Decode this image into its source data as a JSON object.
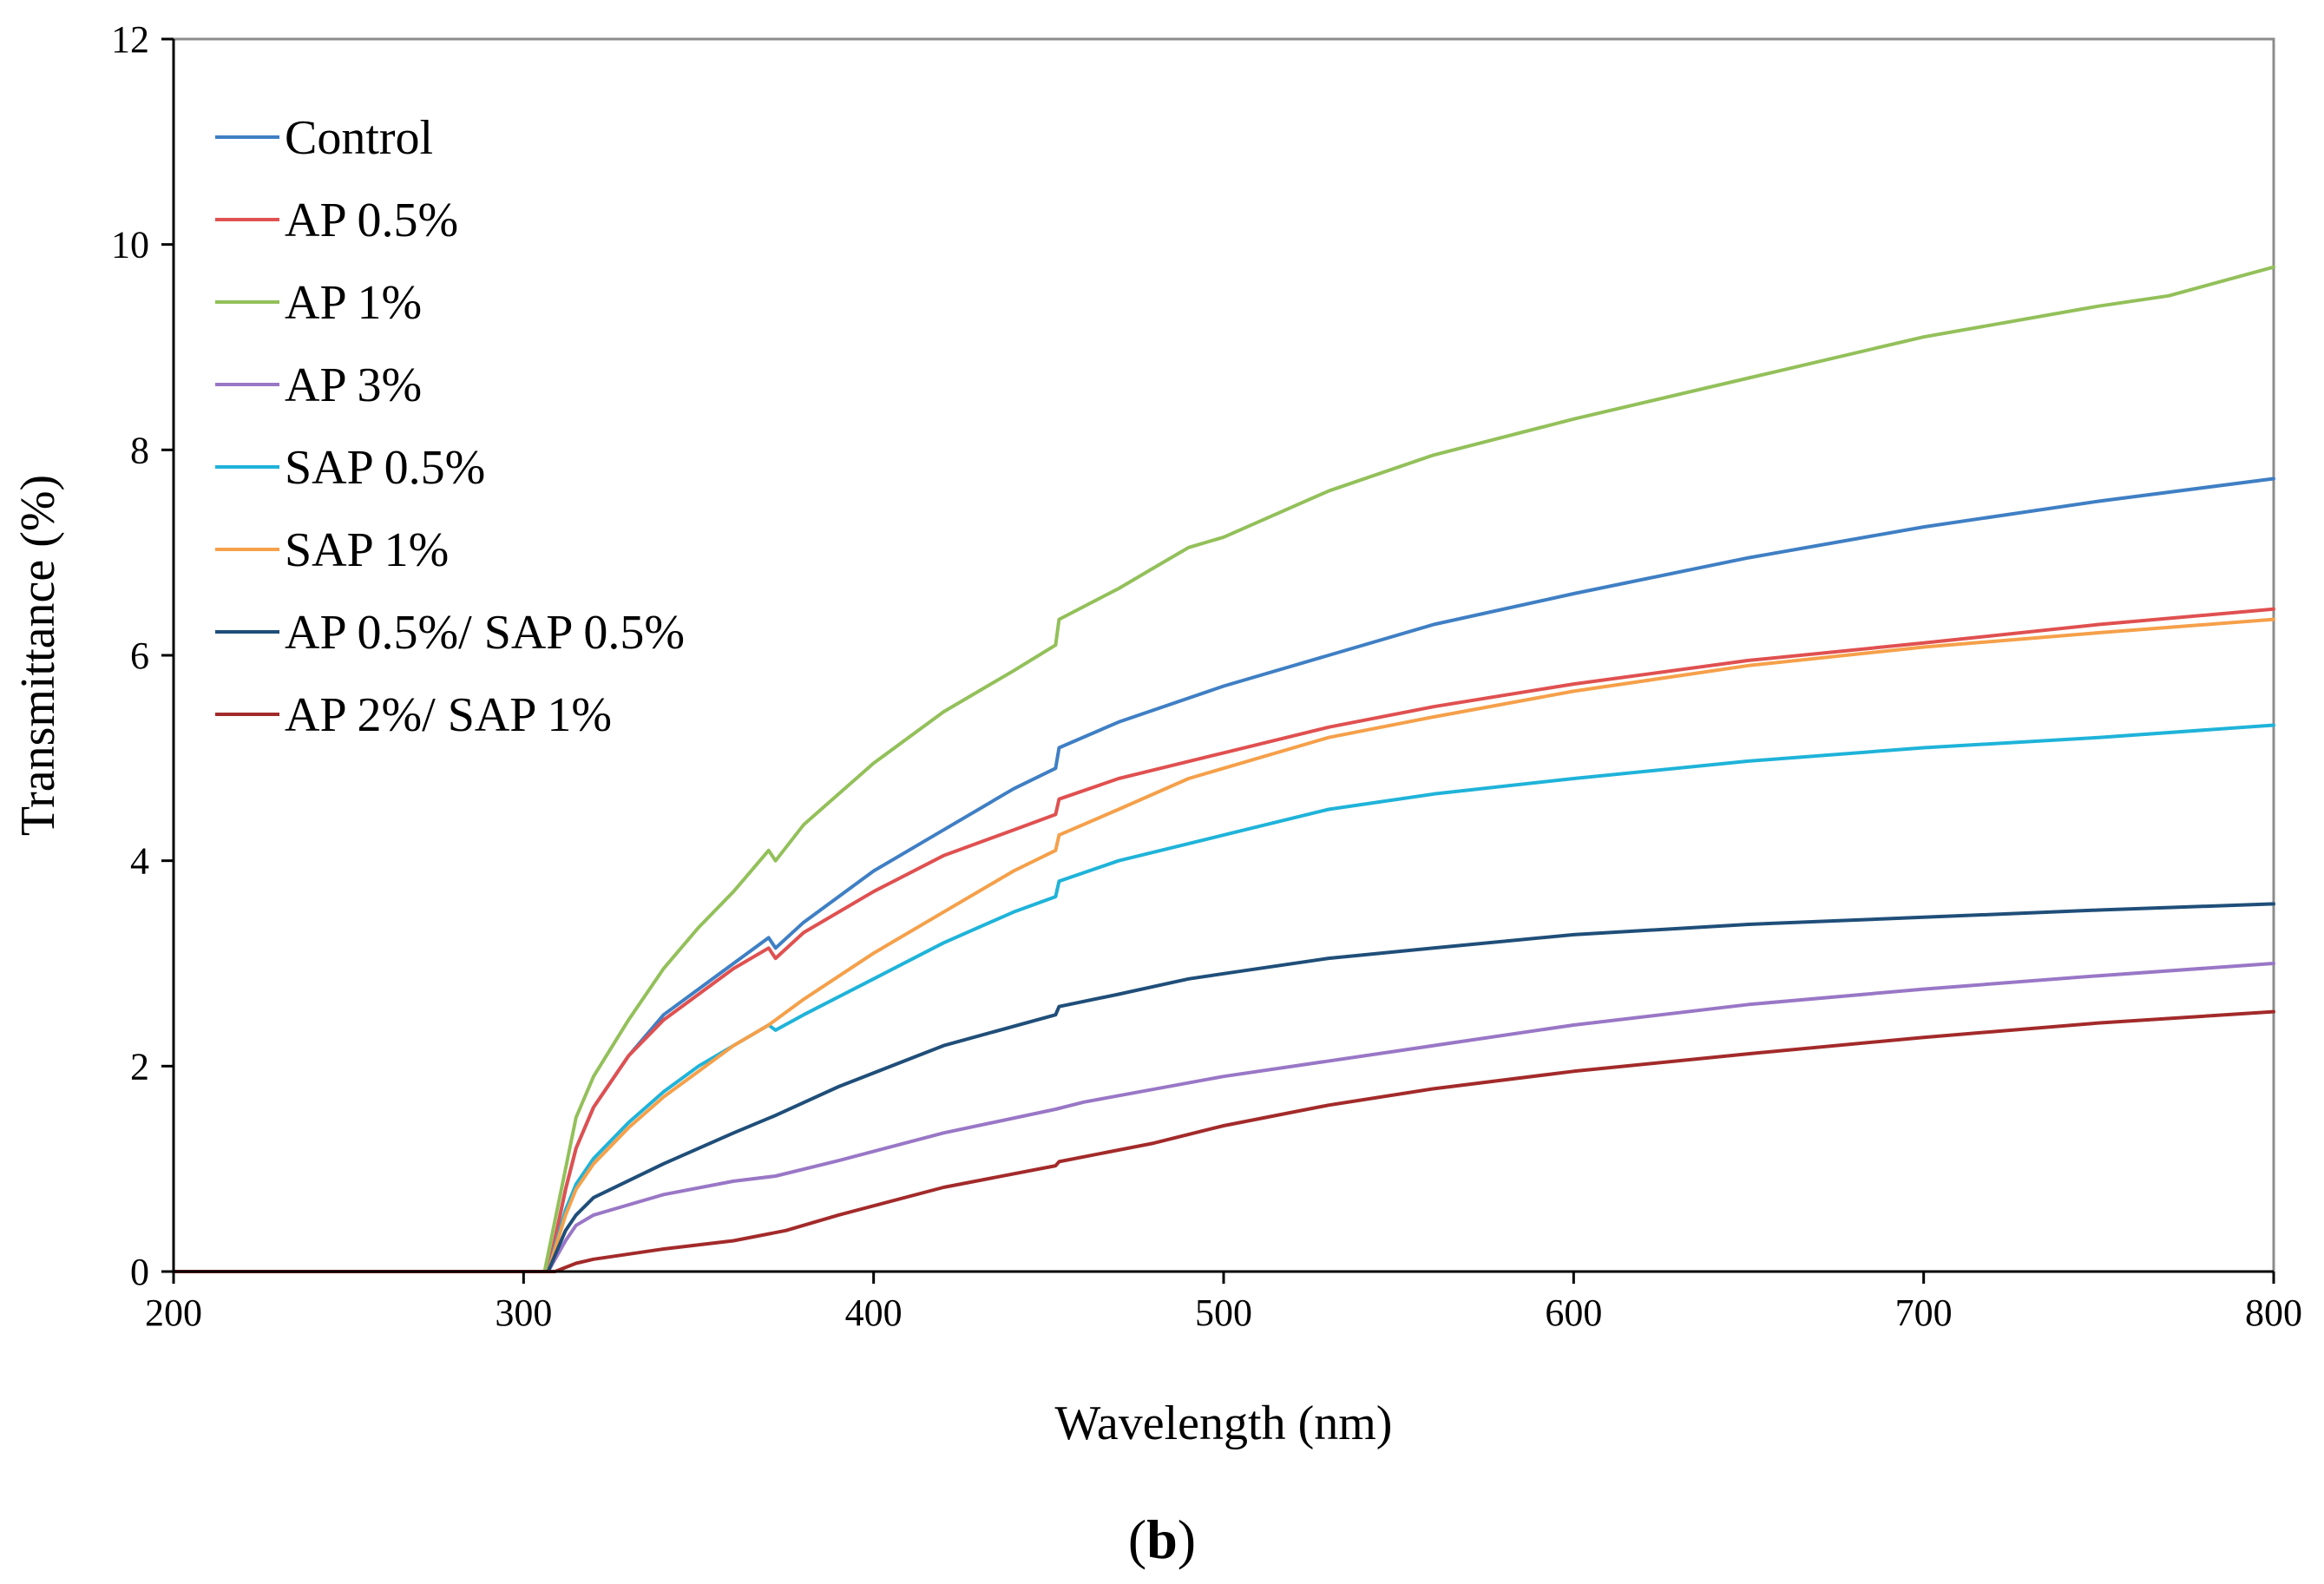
{
  "chart_data": {
    "type": "line",
    "title": "",
    "xlabel": "Wavelength (nm)",
    "ylabel": "Transmittance (%)",
    "panel_label": "(b)",
    "xlim": [
      200,
      800
    ],
    "ylim": [
      0,
      12
    ],
    "x_ticks": [
      200,
      300,
      400,
      500,
      600,
      700,
      800
    ],
    "y_ticks": [
      0,
      2,
      4,
      6,
      8,
      10,
      12
    ],
    "grid": false,
    "legend_position": "top-left",
    "series": [
      {
        "name": "Control",
        "color": "#3f7fc4",
        "points": [
          [
            200,
            0
          ],
          [
            307,
            0
          ],
          [
            312,
            0.8
          ],
          [
            315,
            1.2
          ],
          [
            320,
            1.6
          ],
          [
            330,
            2.1
          ],
          [
            340,
            2.5
          ],
          [
            350,
            2.75
          ],
          [
            360,
            3.0
          ],
          [
            370,
            3.25
          ],
          [
            372,
            3.15
          ],
          [
            380,
            3.4
          ],
          [
            400,
            3.9
          ],
          [
            420,
            4.3
          ],
          [
            440,
            4.7
          ],
          [
            452,
            4.9
          ],
          [
            453,
            5.1
          ],
          [
            470,
            5.35
          ],
          [
            500,
            5.7
          ],
          [
            530,
            6.0
          ],
          [
            560,
            6.3
          ],
          [
            600,
            6.6
          ],
          [
            650,
            6.95
          ],
          [
            700,
            7.25
          ],
          [
            750,
            7.5
          ],
          [
            800,
            7.72
          ]
        ]
      },
      {
        "name": "AP 0.5%",
        "color": "#e05050",
        "points": [
          [
            200,
            0
          ],
          [
            307,
            0
          ],
          [
            312,
            0.8
          ],
          [
            315,
            1.2
          ],
          [
            320,
            1.6
          ],
          [
            330,
            2.1
          ],
          [
            340,
            2.45
          ],
          [
            350,
            2.7
          ],
          [
            360,
            2.95
          ],
          [
            370,
            3.15
          ],
          [
            372,
            3.05
          ],
          [
            380,
            3.3
          ],
          [
            400,
            3.7
          ],
          [
            420,
            4.05
          ],
          [
            440,
            4.3
          ],
          [
            452,
            4.45
          ],
          [
            453,
            4.6
          ],
          [
            470,
            4.8
          ],
          [
            500,
            5.05
          ],
          [
            530,
            5.3
          ],
          [
            560,
            5.5
          ],
          [
            600,
            5.72
          ],
          [
            650,
            5.95
          ],
          [
            700,
            6.12
          ],
          [
            750,
            6.3
          ],
          [
            800,
            6.45
          ]
        ]
      },
      {
        "name": "AP 1%",
        "color": "#93c05a",
        "points": [
          [
            200,
            0
          ],
          [
            306,
            0
          ],
          [
            312,
            1.0
          ],
          [
            315,
            1.5
          ],
          [
            320,
            1.9
          ],
          [
            330,
            2.45
          ],
          [
            340,
            2.95
          ],
          [
            350,
            3.35
          ],
          [
            360,
            3.7
          ],
          [
            370,
            4.1
          ],
          [
            372,
            4.0
          ],
          [
            380,
            4.35
          ],
          [
            400,
            4.95
          ],
          [
            420,
            5.45
          ],
          [
            440,
            5.85
          ],
          [
            452,
            6.1
          ],
          [
            453,
            6.35
          ],
          [
            470,
            6.65
          ],
          [
            480,
            6.85
          ],
          [
            490,
            7.05
          ],
          [
            500,
            7.15
          ],
          [
            530,
            7.6
          ],
          [
            560,
            7.95
          ],
          [
            600,
            8.3
          ],
          [
            650,
            8.7
          ],
          [
            700,
            9.1
          ],
          [
            750,
            9.4
          ],
          [
            770,
            9.5
          ],
          [
            800,
            9.78
          ]
        ]
      },
      {
        "name": "AP 3%",
        "color": "#9977c6",
        "points": [
          [
            200,
            0
          ],
          [
            307,
            0
          ],
          [
            312,
            0.3
          ],
          [
            315,
            0.45
          ],
          [
            320,
            0.55
          ],
          [
            340,
            0.75
          ],
          [
            360,
            0.88
          ],
          [
            372,
            0.93
          ],
          [
            390,
            1.08
          ],
          [
            420,
            1.35
          ],
          [
            452,
            1.58
          ],
          [
            460,
            1.65
          ],
          [
            500,
            1.9
          ],
          [
            550,
            2.15
          ],
          [
            600,
            2.4
          ],
          [
            650,
            2.6
          ],
          [
            700,
            2.75
          ],
          [
            750,
            2.88
          ],
          [
            800,
            3.0
          ]
        ]
      },
      {
        "name": "SAP 0.5%",
        "color": "#1fb3d9",
        "points": [
          [
            200,
            0
          ],
          [
            307,
            0
          ],
          [
            312,
            0.6
          ],
          [
            315,
            0.85
          ],
          [
            320,
            1.1
          ],
          [
            330,
            1.45
          ],
          [
            340,
            1.75
          ],
          [
            350,
            2.0
          ],
          [
            360,
            2.2
          ],
          [
            370,
            2.4
          ],
          [
            372,
            2.35
          ],
          [
            380,
            2.5
          ],
          [
            400,
            2.85
          ],
          [
            420,
            3.2
          ],
          [
            440,
            3.5
          ],
          [
            452,
            3.65
          ],
          [
            453,
            3.8
          ],
          [
            470,
            4.0
          ],
          [
            500,
            4.25
          ],
          [
            530,
            4.5
          ],
          [
            560,
            4.65
          ],
          [
            600,
            4.8
          ],
          [
            650,
            4.97
          ],
          [
            700,
            5.1
          ],
          [
            750,
            5.2
          ],
          [
            800,
            5.32
          ]
        ]
      },
      {
        "name": "SAP 1%",
        "color": "#f5a04a",
        "points": [
          [
            200,
            0
          ],
          [
            307,
            0
          ],
          [
            312,
            0.55
          ],
          [
            315,
            0.8
          ],
          [
            320,
            1.05
          ],
          [
            330,
            1.4
          ],
          [
            340,
            1.7
          ],
          [
            350,
            1.95
          ],
          [
            360,
            2.2
          ],
          [
            370,
            2.4
          ],
          [
            380,
            2.65
          ],
          [
            400,
            3.1
          ],
          [
            420,
            3.5
          ],
          [
            440,
            3.9
          ],
          [
            452,
            4.1
          ],
          [
            453,
            4.25
          ],
          [
            470,
            4.5
          ],
          [
            490,
            4.8
          ],
          [
            500,
            4.9
          ],
          [
            530,
            5.2
          ],
          [
            560,
            5.4
          ],
          [
            600,
            5.65
          ],
          [
            650,
            5.9
          ],
          [
            700,
            6.08
          ],
          [
            750,
            6.22
          ],
          [
            800,
            6.35
          ]
        ]
      },
      {
        "name": "AP 0.5%/ SAP 0.5%",
        "color": "#1f4e79",
        "points": [
          [
            200,
            0
          ],
          [
            307,
            0
          ],
          [
            312,
            0.4
          ],
          [
            315,
            0.55
          ],
          [
            320,
            0.72
          ],
          [
            340,
            1.05
          ],
          [
            360,
            1.35
          ],
          [
            372,
            1.52
          ],
          [
            390,
            1.8
          ],
          [
            420,
            2.2
          ],
          [
            452,
            2.5
          ],
          [
            453,
            2.58
          ],
          [
            470,
            2.7
          ],
          [
            490,
            2.85
          ],
          [
            500,
            2.9
          ],
          [
            530,
            3.05
          ],
          [
            560,
            3.15
          ],
          [
            600,
            3.28
          ],
          [
            650,
            3.38
          ],
          [
            700,
            3.45
          ],
          [
            750,
            3.52
          ],
          [
            800,
            3.58
          ]
        ]
      },
      {
        "name": "AP 2%/ SAP 1%",
        "color": "#a32a2a",
        "points": [
          [
            200,
            0
          ],
          [
            309,
            0
          ],
          [
            315,
            0.08
          ],
          [
            320,
            0.12
          ],
          [
            340,
            0.22
          ],
          [
            360,
            0.3
          ],
          [
            375,
            0.4
          ],
          [
            390,
            0.55
          ],
          [
            420,
            0.82
          ],
          [
            452,
            1.03
          ],
          [
            453,
            1.07
          ],
          [
            480,
            1.25
          ],
          [
            500,
            1.42
          ],
          [
            530,
            1.62
          ],
          [
            560,
            1.78
          ],
          [
            600,
            1.95
          ],
          [
            650,
            2.12
          ],
          [
            700,
            2.28
          ],
          [
            750,
            2.42
          ],
          [
            800,
            2.53
          ]
        ]
      }
    ]
  }
}
